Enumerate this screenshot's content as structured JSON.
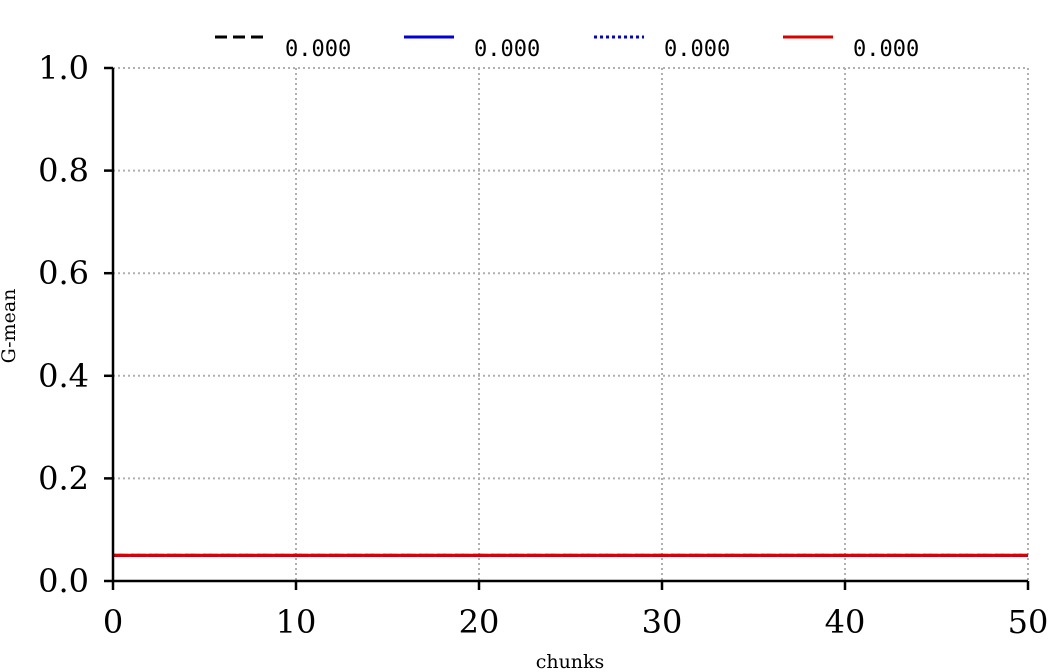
{
  "chart_data": {
    "type": "line",
    "title": "",
    "xlabel": "chunks",
    "ylabel": "G-mean",
    "xlim": [
      0,
      50
    ],
    "ylim": [
      0,
      1.0
    ],
    "xticks": [
      "0",
      "10",
      "20",
      "30",
      "40",
      "50"
    ],
    "yticks": [
      "0.0",
      "0.2",
      "0.4",
      "0.6",
      "0.8",
      "1.0"
    ],
    "grid": true,
    "legend_position": "top",
    "series": [
      {
        "label": "0.000",
        "color": "#000000",
        "linestyle": "dashed",
        "x": [
          0,
          50
        ],
        "y": [
          0.05,
          0.05
        ]
      },
      {
        "label": "0.000",
        "color": "#0000dd",
        "linestyle": "solid",
        "x": [
          0,
          50
        ],
        "y": [
          0.05,
          0.05
        ]
      },
      {
        "label": "0.000",
        "color": "#0000dd",
        "linestyle": "dotted",
        "x": [
          0,
          50
        ],
        "y": [
          0.05,
          0.05
        ]
      },
      {
        "label": "0.000",
        "color": "#dd0000",
        "linestyle": "solid",
        "x": [
          0,
          50
        ],
        "y": [
          0.05,
          0.05
        ]
      }
    ]
  }
}
